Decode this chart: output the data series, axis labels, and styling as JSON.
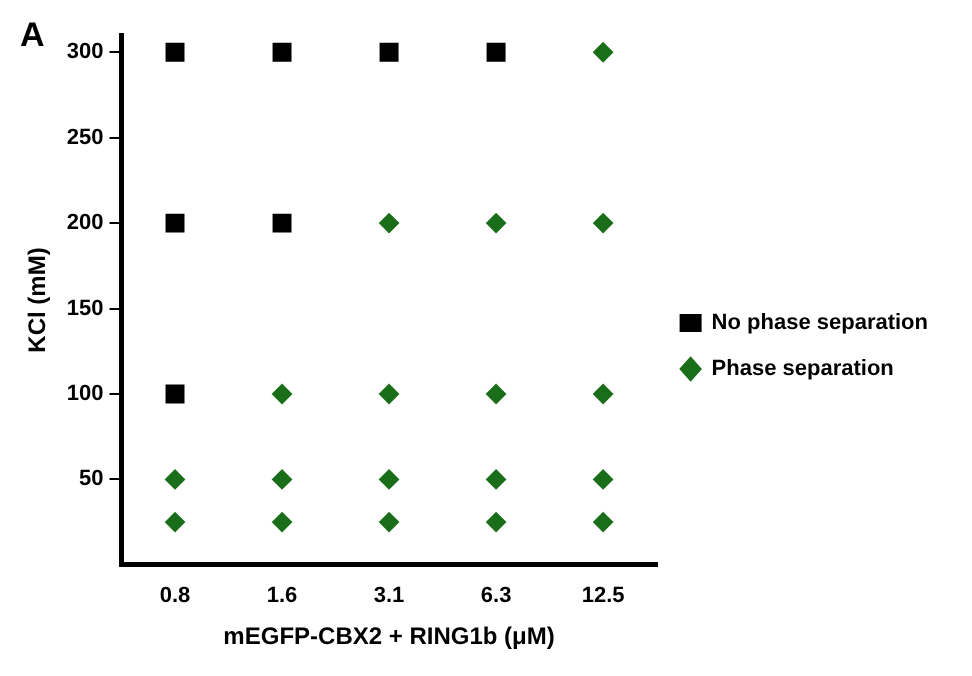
{
  "chart_data": {
    "type": "scatter",
    "categories": [
      "0.8",
      "1.6",
      "3.1",
      "6.3",
      "12.5"
    ],
    "xlabel": "mEGFP-CBX2 + RING1b (μM)",
    "ylabel": "KCl (mM)",
    "annotations": [
      "A"
    ],
    "ylim": [
      0,
      310
    ],
    "yticks": [
      50,
      100,
      150,
      200,
      250,
      300
    ],
    "grid": false,
    "legend": "right",
    "series": [
      {
        "name": "No phase separation",
        "color": "#000000",
        "marker": "square",
        "x": [
          "0.8",
          "1.6",
          "3.1",
          "6.3",
          "0.8",
          "1.6",
          "0.8"
        ],
        "values": [
          300,
          300,
          300,
          300,
          200,
          200,
          100
        ]
      },
      {
        "name": "Phase separation",
        "color": "#1a6e1a",
        "marker": "diamond",
        "x": [
          "12.5",
          "3.1",
          "6.3",
          "12.5",
          "1.6",
          "3.1",
          "6.3",
          "12.5",
          "0.8",
          "1.6",
          "3.1",
          "6.3",
          "12.5",
          "0.8",
          "1.6",
          "3.1",
          "6.3",
          "12.5"
        ],
        "values": [
          300,
          200,
          200,
          200,
          100,
          100,
          100,
          100,
          50,
          50,
          50,
          50,
          50,
          25,
          25,
          25,
          25,
          25
        ]
      }
    ]
  }
}
